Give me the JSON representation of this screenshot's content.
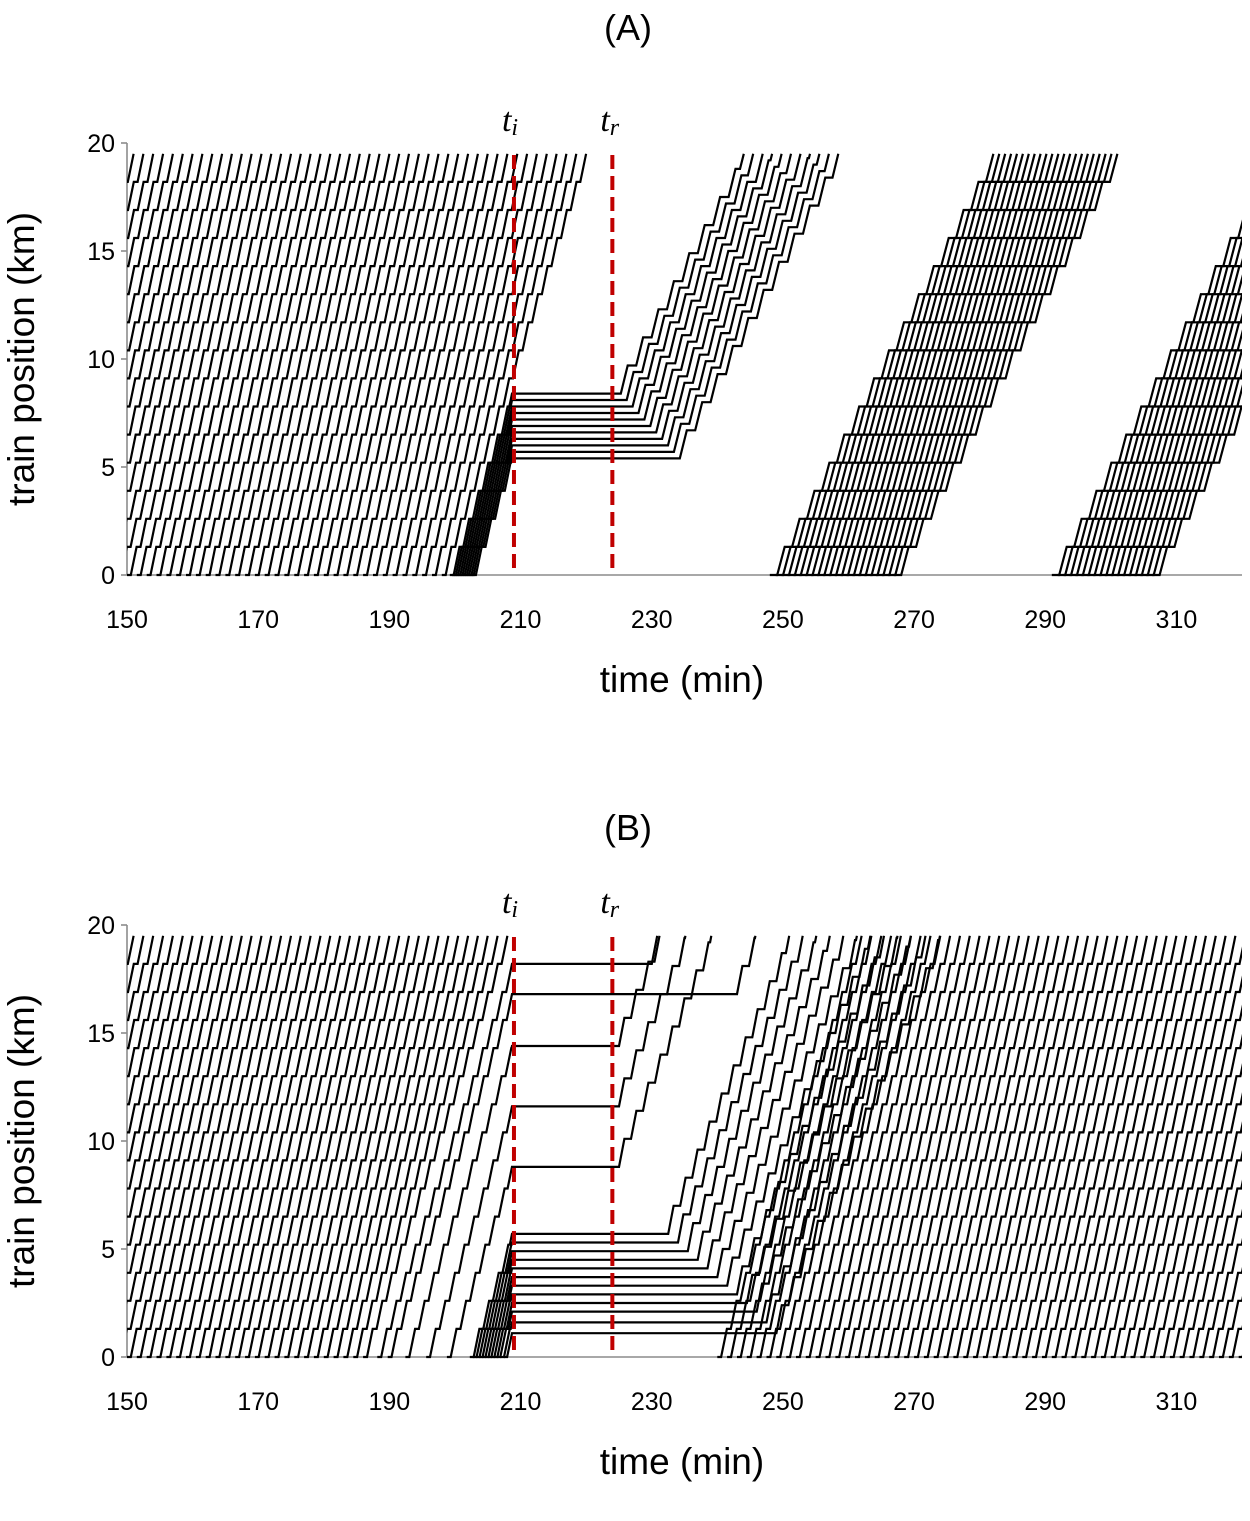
{
  "chart_data": [
    {
      "type": "line",
      "panel_label": "(A)",
      "xlabel": "time (min)",
      "ylabel": "train position (km)",
      "xlim": [
        150,
        320
      ],
      "ylim": [
        0,
        20
      ],
      "xticks": [
        150,
        170,
        190,
        210,
        230,
        250,
        270,
        290,
        310
      ],
      "yticks": [
        0,
        5,
        10,
        15,
        20
      ],
      "grid": false,
      "legend": "none",
      "markers": [
        {
          "label": "t",
          "sub": "i",
          "x": 209,
          "color": "#c00000"
        },
        {
          "label": "t",
          "sub": "r",
          "x": 224,
          "color": "#c00000"
        }
      ],
      "trajectory_model": {
        "track_length_km": 19.5,
        "station_spacing_km": 1.3,
        "trip_duration_min": 22,
        "dwell_fraction": 0.4,
        "headway_before_min": 1.5,
        "stopped_positions_km": [
          8.4,
          8.1,
          7.8,
          7.5,
          7.2,
          6.9,
          6.6,
          6.3,
          6.0,
          5.7,
          5.4
        ],
        "released_headway_min": 0.9,
        "released_speed_km_per_min": 0.45,
        "later_waves": [
          {
            "start": 248,
            "count": 22,
            "headway_min": 0.9,
            "slowdown_km": [
              4,
              10
            ]
          },
          {
            "start": 291,
            "count": 18,
            "headway_min": 0.9,
            "slowdown_km": [
              4,
              10
            ]
          }
        ]
      }
    },
    {
      "type": "line",
      "panel_label": "(B)",
      "xlabel": "time (min)",
      "ylabel": "train position (km)",
      "xlim": [
        150,
        320
      ],
      "ylim": [
        0,
        20
      ],
      "xticks": [
        150,
        170,
        190,
        210,
        230,
        250,
        270,
        290,
        310
      ],
      "yticks": [
        0,
        5,
        10,
        15,
        20
      ],
      "grid": false,
      "legend": "none",
      "markers": [
        {
          "label": "t",
          "sub": "i",
          "x": 209,
          "color": "#c00000"
        },
        {
          "label": "t",
          "sub": "r",
          "x": 224,
          "color": "#c00000"
        }
      ],
      "trajectory_model": {
        "track_length_km": 19.5,
        "station_spacing_km": 1.3,
        "trip_duration_min": 22,
        "dwell_fraction": 0.4,
        "headway_before_min": 1.5,
        "stopped_positions_km": [
          18.2,
          16.8,
          14.4,
          11.6,
          8.8,
          5.7,
          5.3,
          4.9,
          4.5,
          4.1,
          3.7,
          3.3,
          2.9,
          2.5,
          2.1,
          1.6,
          1.1
        ],
        "released_headway_min": 1.5,
        "gap_before_resume_min": [
          224,
          240
        ],
        "resume_start_min": 240,
        "resume_headway_min": 1.5
      }
    }
  ]
}
